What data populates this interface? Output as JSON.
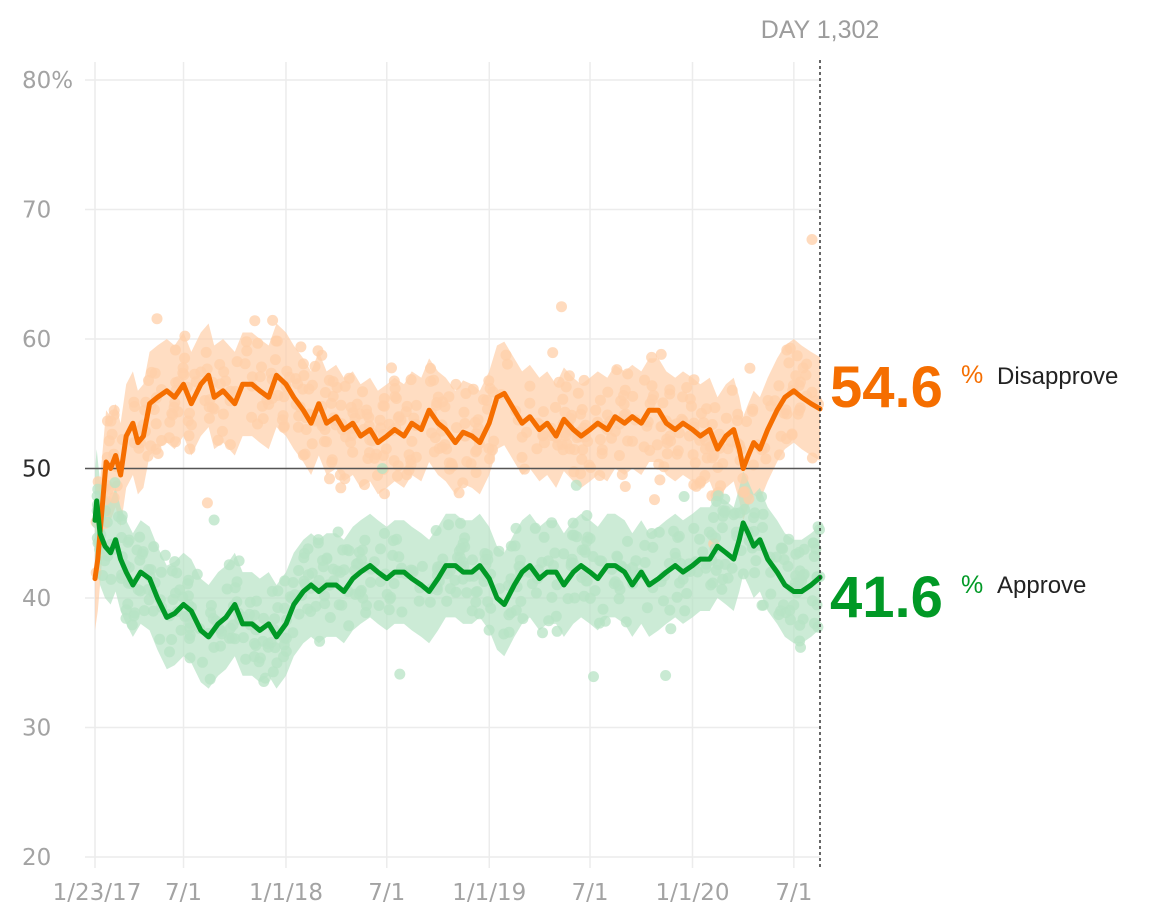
{
  "chart_data": {
    "type": "line",
    "x_axis": {
      "start": "2017-01-23",
      "end": "2020-08-17",
      "ticks": [
        {
          "date": "2017-01-23",
          "label": "1/23/17"
        },
        {
          "date": "2017-07-01",
          "label": "7/1"
        },
        {
          "date": "2018-01-01",
          "label": "1/1/18"
        },
        {
          "date": "2018-07-01",
          "label": "7/1"
        },
        {
          "date": "2019-01-01",
          "label": "1/1/19"
        },
        {
          "date": "2019-07-01",
          "label": "7/1"
        },
        {
          "date": "2020-01-01",
          "label": "1/1/20"
        },
        {
          "date": "2020-07-01",
          "label": "7/1"
        }
      ]
    },
    "y_axis": {
      "ylim": [
        20,
        80
      ],
      "ticks": [
        {
          "value": 80,
          "label": "80%"
        },
        {
          "value": 70,
          "label": "70"
        },
        {
          "value": 60,
          "label": "60"
        },
        {
          "value": 50,
          "label": "50"
        },
        {
          "value": 40,
          "label": "40"
        },
        {
          "value": 30,
          "label": "30"
        },
        {
          "value": 20,
          "label": "20"
        }
      ],
      "reference_line": 50
    },
    "grid": true,
    "marker": {
      "label": "DAY 1,302",
      "date": "2020-08-17"
    },
    "series": [
      {
        "name": "Disapprove",
        "current_value": "54.6",
        "percent_sign": "%",
        "color": "#f56e00",
        "light_color": "#ffcfa8",
        "band_halfwidth": 4,
        "points": [
          [
            "2017-01-23",
            41.5
          ],
          [
            "2017-01-28",
            43.0
          ],
          [
            "2017-02-05",
            47.0
          ],
          [
            "2017-02-12",
            50.5
          ],
          [
            "2017-02-20",
            50.0
          ],
          [
            "2017-03-01",
            51.0
          ],
          [
            "2017-03-10",
            49.5
          ],
          [
            "2017-03-20",
            52.5
          ],
          [
            "2017-04-01",
            53.5
          ],
          [
            "2017-04-10",
            52.0
          ],
          [
            "2017-04-20",
            52.5
          ],
          [
            "2017-05-01",
            55.0
          ],
          [
            "2017-05-15",
            55.5
          ],
          [
            "2017-06-01",
            56.0
          ],
          [
            "2017-06-15",
            55.5
          ],
          [
            "2017-07-01",
            56.5
          ],
          [
            "2017-07-15",
            55.0
          ],
          [
            "2017-08-01",
            56.5
          ],
          [
            "2017-08-15",
            57.2
          ],
          [
            "2017-08-25",
            55.5
          ],
          [
            "2017-09-10",
            56.0
          ],
          [
            "2017-10-01",
            55.0
          ],
          [
            "2017-10-15",
            56.5
          ],
          [
            "2017-11-01",
            56.5
          ],
          [
            "2017-11-15",
            56.0
          ],
          [
            "2017-12-01",
            55.5
          ],
          [
            "2017-12-15",
            57.2
          ],
          [
            "2018-01-01",
            56.5
          ],
          [
            "2018-01-15",
            55.5
          ],
          [
            "2018-02-01",
            54.5
          ],
          [
            "2018-02-15",
            53.5
          ],
          [
            "2018-03-01",
            55.0
          ],
          [
            "2018-03-15",
            53.5
          ],
          [
            "2018-04-01",
            54.0
          ],
          [
            "2018-04-15",
            53.0
          ],
          [
            "2018-05-01",
            53.5
          ],
          [
            "2018-05-15",
            52.5
          ],
          [
            "2018-06-01",
            53.0
          ],
          [
            "2018-06-15",
            52.0
          ],
          [
            "2018-07-01",
            52.5
          ],
          [
            "2018-07-15",
            53.0
          ],
          [
            "2018-08-01",
            52.5
          ],
          [
            "2018-08-15",
            53.5
          ],
          [
            "2018-09-01",
            53.0
          ],
          [
            "2018-09-15",
            54.5
          ],
          [
            "2018-10-01",
            53.5
          ],
          [
            "2018-10-15",
            53.0
          ],
          [
            "2018-11-01",
            52.0
          ],
          [
            "2018-11-15",
            52.8
          ],
          [
            "2018-12-01",
            52.5
          ],
          [
            "2018-12-15",
            52.0
          ],
          [
            "2019-01-01",
            53.5
          ],
          [
            "2019-01-15",
            55.5
          ],
          [
            "2019-01-28",
            55.8
          ],
          [
            "2019-02-15",
            54.5
          ],
          [
            "2019-03-01",
            53.5
          ],
          [
            "2019-03-15",
            54.0
          ],
          [
            "2019-04-01",
            53.0
          ],
          [
            "2019-04-15",
            53.5
          ],
          [
            "2019-05-01",
            52.5
          ],
          [
            "2019-05-15",
            53.8
          ],
          [
            "2019-06-01",
            53.0
          ],
          [
            "2019-06-15",
            52.5
          ],
          [
            "2019-07-01",
            53.0
          ],
          [
            "2019-07-15",
            53.5
          ],
          [
            "2019-08-01",
            53.0
          ],
          [
            "2019-08-15",
            54.0
          ],
          [
            "2019-09-01",
            53.5
          ],
          [
            "2019-09-15",
            54.0
          ],
          [
            "2019-10-01",
            53.5
          ],
          [
            "2019-10-15",
            54.5
          ],
          [
            "2019-11-01",
            54.5
          ],
          [
            "2019-11-15",
            53.5
          ],
          [
            "2019-12-01",
            53.0
          ],
          [
            "2019-12-15",
            53.5
          ],
          [
            "2020-01-01",
            53.0
          ],
          [
            "2020-01-15",
            52.5
          ],
          [
            "2020-02-01",
            53.0
          ],
          [
            "2020-02-15",
            51.5
          ],
          [
            "2020-03-01",
            52.5
          ],
          [
            "2020-03-15",
            53.0
          ],
          [
            "2020-03-25",
            51.5
          ],
          [
            "2020-04-01",
            50.0
          ],
          [
            "2020-04-10",
            51.0
          ],
          [
            "2020-04-20",
            52.0
          ],
          [
            "2020-05-01",
            51.5
          ],
          [
            "2020-05-15",
            53.0
          ],
          [
            "2020-06-01",
            54.5
          ],
          [
            "2020-06-15",
            55.5
          ],
          [
            "2020-07-01",
            56.0
          ],
          [
            "2020-07-15",
            55.5
          ],
          [
            "2020-08-01",
            55.0
          ],
          [
            "2020-08-17",
            54.6
          ]
        ]
      },
      {
        "name": "Approve",
        "current_value": "41.6",
        "percent_sign": "%",
        "color": "#019926",
        "light_color": "#b7e3c4",
        "band_halfwidth": 4,
        "points": [
          [
            "2017-01-23",
            46.0
          ],
          [
            "2017-01-26",
            47.5
          ],
          [
            "2017-02-01",
            45.0
          ],
          [
            "2017-02-10",
            44.0
          ],
          [
            "2017-02-20",
            43.5
          ],
          [
            "2017-03-01",
            44.5
          ],
          [
            "2017-03-10",
            43.0
          ],
          [
            "2017-03-20",
            42.0
          ],
          [
            "2017-04-01",
            41.0
          ],
          [
            "2017-04-15",
            42.0
          ],
          [
            "2017-05-01",
            41.5
          ],
          [
            "2017-05-15",
            40.0
          ],
          [
            "2017-06-01",
            38.5
          ],
          [
            "2017-06-15",
            38.8
          ],
          [
            "2017-07-01",
            39.5
          ],
          [
            "2017-07-15",
            39.0
          ],
          [
            "2017-08-01",
            37.5
          ],
          [
            "2017-08-15",
            37.0
          ],
          [
            "2017-09-01",
            38.0
          ],
          [
            "2017-09-15",
            38.5
          ],
          [
            "2017-10-01",
            39.5
          ],
          [
            "2017-10-15",
            38.0
          ],
          [
            "2017-11-01",
            38.0
          ],
          [
            "2017-11-15",
            37.5
          ],
          [
            "2017-12-01",
            38.0
          ],
          [
            "2017-12-15",
            37.0
          ],
          [
            "2018-01-01",
            38.0
          ],
          [
            "2018-01-15",
            39.5
          ],
          [
            "2018-02-01",
            40.5
          ],
          [
            "2018-02-15",
            41.0
          ],
          [
            "2018-03-01",
            40.5
          ],
          [
            "2018-03-15",
            41.0
          ],
          [
            "2018-04-01",
            41.0
          ],
          [
            "2018-04-15",
            40.5
          ],
          [
            "2018-05-01",
            41.5
          ],
          [
            "2018-05-15",
            42.0
          ],
          [
            "2018-06-01",
            42.5
          ],
          [
            "2018-06-15",
            42.0
          ],
          [
            "2018-07-01",
            41.5
          ],
          [
            "2018-07-15",
            42.0
          ],
          [
            "2018-08-01",
            42.0
          ],
          [
            "2018-08-15",
            41.5
          ],
          [
            "2018-09-01",
            41.0
          ],
          [
            "2018-09-15",
            40.5
          ],
          [
            "2018-10-01",
            41.5
          ],
          [
            "2018-10-15",
            42.5
          ],
          [
            "2018-11-01",
            42.5
          ],
          [
            "2018-11-15",
            42.0
          ],
          [
            "2018-12-01",
            42.0
          ],
          [
            "2018-12-15",
            42.5
          ],
          [
            "2019-01-01",
            41.5
          ],
          [
            "2019-01-15",
            40.0
          ],
          [
            "2019-01-28",
            39.5
          ],
          [
            "2019-02-15",
            41.0
          ],
          [
            "2019-03-01",
            42.0
          ],
          [
            "2019-03-15",
            42.5
          ],
          [
            "2019-04-01",
            41.5
          ],
          [
            "2019-04-15",
            42.0
          ],
          [
            "2019-05-01",
            42.0
          ],
          [
            "2019-05-15",
            41.0
          ],
          [
            "2019-06-01",
            42.0
          ],
          [
            "2019-06-15",
            42.5
          ],
          [
            "2019-07-01",
            42.0
          ],
          [
            "2019-07-15",
            41.5
          ],
          [
            "2019-08-01",
            42.5
          ],
          [
            "2019-08-15",
            42.5
          ],
          [
            "2019-09-01",
            42.0
          ],
          [
            "2019-09-15",
            41.0
          ],
          [
            "2019-10-01",
            42.0
          ],
          [
            "2019-10-15",
            41.0
          ],
          [
            "2019-11-01",
            41.5
          ],
          [
            "2019-11-15",
            42.0
          ],
          [
            "2019-12-01",
            42.5
          ],
          [
            "2019-12-15",
            42.0
          ],
          [
            "2020-01-01",
            42.5
          ],
          [
            "2020-01-15",
            43.0
          ],
          [
            "2020-02-01",
            43.0
          ],
          [
            "2020-02-15",
            44.0
          ],
          [
            "2020-03-01",
            43.5
          ],
          [
            "2020-03-15",
            43.0
          ],
          [
            "2020-03-25",
            44.5
          ],
          [
            "2020-04-01",
            45.8
          ],
          [
            "2020-04-10",
            45.0
          ],
          [
            "2020-04-20",
            44.0
          ],
          [
            "2020-05-01",
            44.5
          ],
          [
            "2020-05-15",
            43.0
          ],
          [
            "2020-06-01",
            42.0
          ],
          [
            "2020-06-15",
            41.0
          ],
          [
            "2020-07-01",
            40.5
          ],
          [
            "2020-07-15",
            40.5
          ],
          [
            "2020-08-01",
            41.0
          ],
          [
            "2020-08-17",
            41.6
          ]
        ]
      }
    ]
  }
}
